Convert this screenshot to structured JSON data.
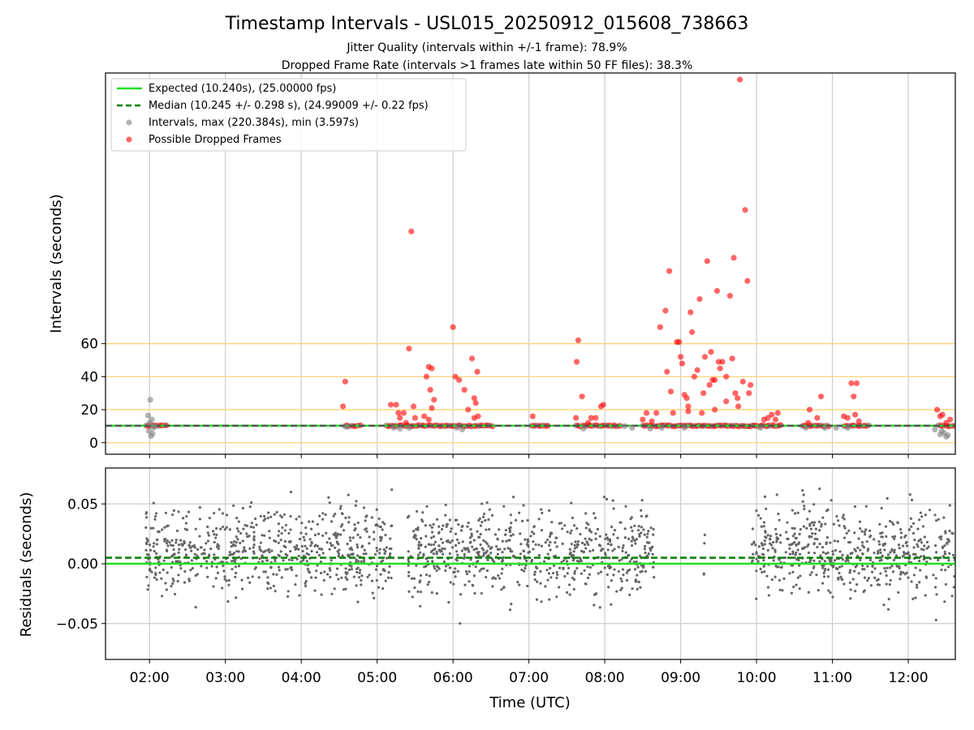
{
  "title": "Timestamp Intervals - USL015_20250912_015608_738663",
  "subtitle_1": "Jitter Quality (intervals within +/-1 frame): 78.9%",
  "subtitle_2": "Dropped Frame Rate (intervals >1 frames late within 50 FF files): 38.3%",
  "colors": {
    "expected": "#22e022",
    "median": "#008000",
    "intervals": "#808080",
    "dropped": "#ff0000",
    "hlines": "#ffd27a",
    "grid": "#cccccc",
    "residuals": "#666666"
  },
  "chart_data": [
    {
      "type": "scatter",
      "panel": "intervals",
      "ylabel": "Intervals (seconds)",
      "ylim": [
        -7,
        224
      ],
      "yticks": [
        0,
        20,
        40,
        60
      ],
      "xlim": [
        1.42,
        12.62
      ],
      "xticks": [
        2,
        3,
        4,
        5,
        6,
        7,
        8,
        9,
        10,
        11,
        12
      ],
      "xtick_labels": [
        "02:00",
        "03:00",
        "04:00",
        "05:00",
        "06:00",
        "07:00",
        "08:00",
        "09:00",
        "10:00",
        "11:00",
        "12:00"
      ],
      "reference_hlines": [
        0,
        20,
        40,
        60
      ],
      "grid": "vertical",
      "legend_position": "upper-left",
      "legend": [
        "Expected (10.240s), (25.00000 fps)",
        "Median (10.245 +/- 0.298 s), (24.99009 +/- 0.22 fps)",
        "Intervals, max (220.384s), min (3.597s)",
        "Possible Dropped Frames"
      ],
      "expected_interval": 10.24,
      "median_interval": 10.245,
      "baseline_segments": [
        [
          1.95,
          2.22
        ],
        [
          4.57,
          4.78
        ],
        [
          5.12,
          6.52
        ],
        [
          7.03,
          7.25
        ],
        [
          7.62,
          8.2
        ],
        [
          8.5,
          9.95
        ],
        [
          9.95,
          10.32
        ],
        [
          10.6,
          10.95
        ],
        [
          11.15,
          11.48
        ],
        [
          12.4,
          12.6
        ]
      ],
      "intervals_points": [
        [
          1.98,
          16.5
        ],
        [
          2.01,
          26
        ],
        [
          2.03,
          14
        ],
        [
          2.0,
          12
        ],
        [
          1.99,
          7
        ],
        [
          2.02,
          4
        ],
        [
          2.04,
          5.5
        ],
        [
          2.05,
          9
        ],
        [
          2.06,
          10
        ],
        [
          4.6,
          9.5
        ],
        [
          5.22,
          9
        ],
        [
          5.3,
          8.5
        ],
        [
          5.42,
          9
        ],
        [
          6.12,
          8
        ],
        [
          6.05,
          9
        ],
        [
          7.72,
          8.5
        ],
        [
          8.26,
          10
        ],
        [
          8.36,
          9
        ],
        [
          8.6,
          8.5
        ],
        [
          8.75,
          9
        ],
        [
          9.05,
          9
        ],
        [
          10.05,
          9
        ],
        [
          10.65,
          9
        ],
        [
          10.9,
          9
        ],
        [
          11.05,
          9
        ],
        [
          11.2,
          9
        ],
        [
          12.35,
          8
        ],
        [
          12.42,
          5
        ],
        [
          12.44,
          7
        ],
        [
          12.47,
          6
        ],
        [
          12.5,
          3.6
        ],
        [
          12.52,
          4.5
        ]
      ],
      "dropped_points": [
        [
          4.55,
          22
        ],
        [
          4.58,
          37
        ],
        [
          5.18,
          23
        ],
        [
          5.25,
          23
        ],
        [
          5.28,
          18
        ],
        [
          5.3,
          15
        ],
        [
          5.35,
          18
        ],
        [
          5.38,
          12
        ],
        [
          5.42,
          57
        ],
        [
          5.45,
          128
        ],
        [
          5.48,
          22
        ],
        [
          5.5,
          15
        ],
        [
          5.62,
          16
        ],
        [
          5.65,
          40
        ],
        [
          5.68,
          46
        ],
        [
          5.7,
          32
        ],
        [
          5.72,
          45
        ],
        [
          5.75,
          26
        ],
        [
          5.72,
          21
        ],
        [
          5.68,
          14
        ],
        [
          6.0,
          70
        ],
        [
          6.03,
          40
        ],
        [
          6.08,
          38
        ],
        [
          6.15,
          32
        ],
        [
          6.2,
          20
        ],
        [
          6.25,
          51
        ],
        [
          6.28,
          27
        ],
        [
          6.3,
          24
        ],
        [
          6.32,
          43
        ],
        [
          6.33,
          16
        ],
        [
          6.28,
          15
        ],
        [
          7.05,
          16
        ],
        [
          7.63,
          49
        ],
        [
          7.65,
          62
        ],
        [
          7.7,
          28
        ],
        [
          7.62,
          15
        ],
        [
          7.78,
          12
        ],
        [
          7.82,
          15
        ],
        [
          7.88,
          15
        ],
        [
          7.95,
          22
        ],
        [
          7.98,
          23
        ],
        [
          8.5,
          14
        ],
        [
          8.55,
          18
        ],
        [
          8.62,
          13
        ],
        [
          8.68,
          18
        ],
        [
          8.73,
          70
        ],
        [
          8.8,
          80
        ],
        [
          8.82,
          43
        ],
        [
          8.85,
          104
        ],
        [
          8.87,
          31
        ],
        [
          8.9,
          18
        ],
        [
          8.95,
          61
        ],
        [
          8.98,
          61
        ],
        [
          9.0,
          52
        ],
        [
          9.02,
          48
        ],
        [
          9.05,
          29
        ],
        [
          9.08,
          27
        ],
        [
          9.1,
          19
        ],
        [
          9.13,
          79
        ],
        [
          9.15,
          67
        ],
        [
          9.18,
          40
        ],
        [
          9.22,
          44
        ],
        [
          9.25,
          87
        ],
        [
          9.3,
          30
        ],
        [
          9.32,
          52
        ],
        [
          9.35,
          110
        ],
        [
          9.38,
          35
        ],
        [
          9.4,
          55
        ],
        [
          9.42,
          38
        ],
        [
          9.45,
          20
        ],
        [
          9.48,
          92
        ],
        [
          9.5,
          49
        ],
        [
          9.52,
          45
        ],
        [
          9.55,
          49
        ],
        [
          9.6,
          40
        ],
        [
          9.65,
          89
        ],
        [
          9.68,
          51
        ],
        [
          9.7,
          112
        ],
        [
          9.72,
          30
        ],
        [
          9.75,
          27
        ],
        [
          9.78,
          220
        ],
        [
          9.82,
          37
        ],
        [
          9.85,
          141
        ],
        [
          9.88,
          98
        ],
        [
          9.9,
          30
        ],
        [
          9.92,
          35
        ],
        [
          9.76,
          22
        ],
        [
          9.6,
          25
        ],
        [
          9.45,
          38
        ],
        [
          9.28,
          18
        ],
        [
          9.1,
          22
        ],
        [
          10.1,
          14
        ],
        [
          10.15,
          15
        ],
        [
          10.2,
          17
        ],
        [
          10.25,
          14
        ],
        [
          10.28,
          18
        ],
        [
          10.68,
          12
        ],
        [
          10.7,
          20
        ],
        [
          10.8,
          15
        ],
        [
          10.85,
          28
        ],
        [
          11.15,
          16
        ],
        [
          11.2,
          15
        ],
        [
          11.25,
          36
        ],
        [
          11.28,
          28
        ],
        [
          11.3,
          17
        ],
        [
          11.32,
          36
        ],
        [
          11.35,
          13
        ],
        [
          12.38,
          20
        ],
        [
          12.42,
          16
        ],
        [
          12.45,
          17
        ],
        [
          12.5,
          12
        ],
        [
          12.55,
          14
        ]
      ]
    },
    {
      "type": "scatter",
      "panel": "residuals",
      "ylabel": "Residuals (seconds)",
      "xlabel": "Time (UTC)",
      "ylim": [
        -0.08,
        0.08
      ],
      "yticks": [
        0.05,
        0.0,
        -0.05
      ],
      "ytick_labels": [
        "0.05",
        "0.00",
        "−0.05"
      ],
      "xlim": [
        1.42,
        12.62
      ],
      "xticks": [
        2,
        3,
        4,
        5,
        6,
        7,
        8,
        9,
        10,
        11,
        12
      ],
      "xtick_labels": [
        "02:00",
        "03:00",
        "04:00",
        "05:00",
        "06:00",
        "07:00",
        "08:00",
        "09:00",
        "10:00",
        "11:00",
        "12:00"
      ],
      "grid": "both",
      "expected_line": 0.0,
      "median_line": 0.005,
      "coverage_segments": [
        [
          1.95,
          5.2
        ],
        [
          5.4,
          8.65
        ],
        [
          9.3,
          9.32
        ],
        [
          9.92,
          12.62
        ]
      ],
      "typical_spread": 0.025
    }
  ]
}
